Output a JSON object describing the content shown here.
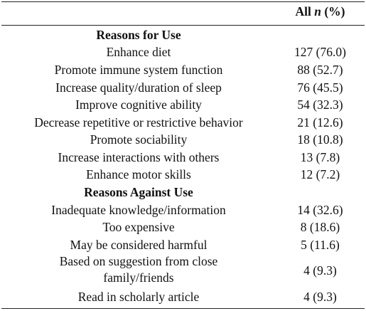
{
  "header": {
    "col_value_prefix": "All ",
    "col_value_n": "n",
    "col_value_suffix": " (%)"
  },
  "sections": [
    {
      "title": "Reasons for Use",
      "rows": [
        {
          "label": "Enhance diet",
          "value": "127 (76.0)"
        },
        {
          "label": "Promote immune system function",
          "value": "88 (52.7)"
        },
        {
          "label": "Increase quality/duration of sleep",
          "value": "76 (45.5)"
        },
        {
          "label": "Improve cognitive ability",
          "value": "54 (32.3)"
        },
        {
          "label": "Decrease repetitive or restrictive behavior",
          "value": "21 (12.6)"
        },
        {
          "label": "Promote sociability",
          "value": "18 (10.8)"
        },
        {
          "label": "Increase interactions with others",
          "value": "13 (7.8)"
        },
        {
          "label": "Enhance motor skills",
          "value": "12 (7.2)"
        }
      ]
    },
    {
      "title": "Reasons Against Use",
      "rows": [
        {
          "label": "Inadequate knowledge/information",
          "value": "14 (32.6)"
        },
        {
          "label": "Too expensive",
          "value": "8 (18.6)"
        },
        {
          "label": "May be considered harmful",
          "value": "5 (11.6)"
        },
        {
          "label_line1": "Based on suggestion from close",
          "label_line2": "family/friends",
          "value": "4 (9.3)"
        },
        {
          "label": "Read in scholarly article",
          "value": "4 (9.3)"
        }
      ]
    }
  ]
}
